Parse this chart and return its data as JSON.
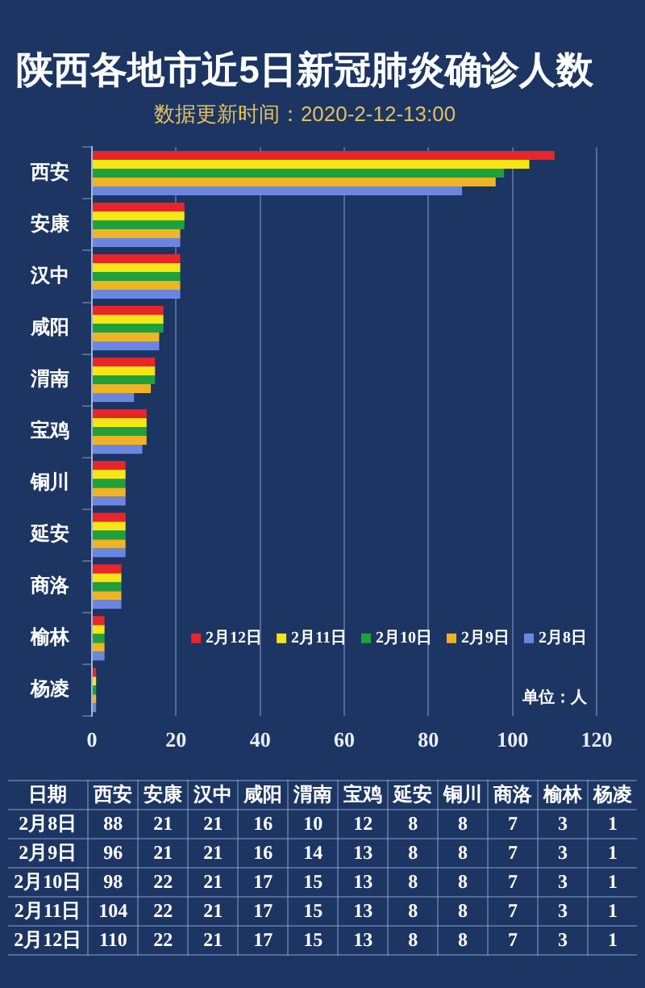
{
  "chart_data": [
    {
      "type": "bar",
      "orientation": "horizontal",
      "title": "陕西各地市近5日新冠肺炎确诊人数",
      "subtitle": "数据更新时间：2020-2-12-13:00",
      "categories": [
        "西安",
        "安康",
        "汉中",
        "咸阳",
        "渭南",
        "宝鸡",
        "铜川",
        "延安",
        "商洛",
        "榆林",
        "杨凌"
      ],
      "series": [
        {
          "name": "2月12日",
          "color": "#e8262a",
          "values": [
            110,
            22,
            21,
            17,
            15,
            13,
            8,
            8,
            7,
            3,
            1
          ]
        },
        {
          "name": "2月11日",
          "color": "#f5e614",
          "values": [
            104,
            22,
            21,
            17,
            15,
            13,
            8,
            8,
            7,
            3,
            1
          ]
        },
        {
          "name": "2月10日",
          "color": "#1fa03c",
          "values": [
            98,
            22,
            21,
            17,
            15,
            13,
            8,
            8,
            7,
            3,
            1
          ]
        },
        {
          "name": "2月9日",
          "color": "#f0b323",
          "values": [
            96,
            21,
            21,
            16,
            14,
            13,
            8,
            8,
            7,
            3,
            1
          ]
        },
        {
          "name": "2月8日",
          "color": "#6b86e0",
          "values": [
            88,
            21,
            21,
            16,
            10,
            12,
            8,
            8,
            7,
            3,
            1
          ]
        }
      ],
      "xlim": [
        0,
        120
      ],
      "xticks": [
        0,
        20,
        40,
        60,
        80,
        100,
        120
      ],
      "grid": "x",
      "legend": "bottom right",
      "annotations": [
        "单位：人"
      ]
    },
    {
      "type": "heatmap",
      "ylabel": "日期",
      "categories": [
        "西安",
        "安康",
        "汉中",
        "咸阳",
        "渭南",
        "宝鸡",
        "延安",
        "铜川",
        "商洛",
        "榆林",
        "杨凌"
      ],
      "y_categories": [
        "2月8日",
        "2月9日",
        "2月10日",
        "2月11日",
        "2月12日"
      ],
      "cells": [
        [
          88,
          21,
          21,
          16,
          10,
          12,
          8,
          8,
          7,
          3,
          1
        ],
        [
          96,
          21,
          21,
          16,
          14,
          13,
          8,
          8,
          7,
          3,
          1
        ],
        [
          98,
          22,
          21,
          17,
          15,
          13,
          8,
          8,
          7,
          3,
          1
        ],
        [
          104,
          22,
          21,
          17,
          15,
          13,
          8,
          8,
          7,
          3,
          1
        ],
        [
          110,
          22,
          21,
          17,
          15,
          13,
          8,
          8,
          7,
          3,
          1
        ]
      ],
      "data_labels": true
    }
  ]
}
